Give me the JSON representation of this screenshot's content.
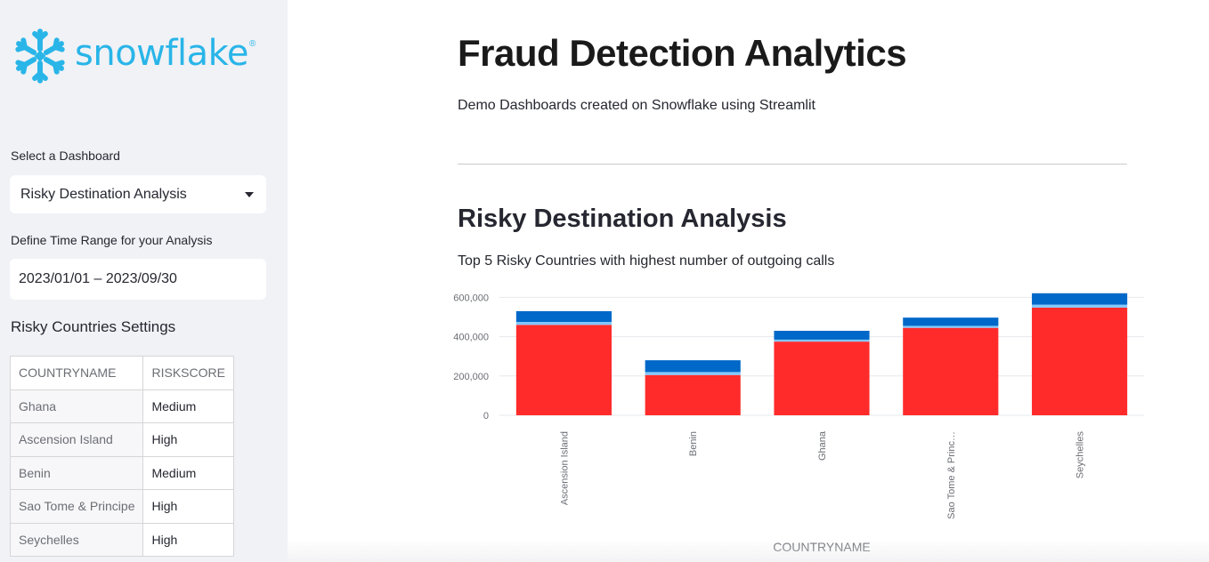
{
  "brand": {
    "logo_text": "snowflake",
    "reg_mark": "®",
    "logo_color": "#29b5e8"
  },
  "sidebar": {
    "select_label": "Select a Dashboard",
    "selected_dashboard": "Risky Destination Analysis",
    "time_label": "Define Time Range for your Analysis",
    "time_range": "2023/01/01 – 2023/09/30",
    "settings_heading": "Risky Countries Settings",
    "table": {
      "columns": [
        "COUNTRYNAME",
        "RISKSCORE"
      ],
      "rows": [
        [
          "Ghana",
          "Medium"
        ],
        [
          "Ascension Island",
          "High"
        ],
        [
          "Benin",
          "Medium"
        ],
        [
          "Sao Tome & Principe",
          "High"
        ],
        [
          "Seychelles",
          "High"
        ]
      ]
    }
  },
  "main": {
    "title": "Fraud Detection Analytics",
    "subtitle": "Demo Dashboards created on Snowflake using Streamlit",
    "section_title": "Risky Destination Analysis",
    "chart_caption": "Top 5 Risky Countries with highest number of outgoing calls"
  },
  "chart_data": {
    "type": "bar",
    "stacked": true,
    "categories": [
      "Ascension Island",
      "Benin",
      "Ghana",
      "Sao Tome & Princ…",
      "Seychelles"
    ],
    "series": [
      {
        "values": [
          460000,
          205000,
          375000,
          445000,
          548000
        ],
        "color": "#ff2b2b"
      },
      {
        "values": [
          15000,
          15000,
          10000,
          10000,
          15000
        ],
        "color": "#83c9ff"
      },
      {
        "values": [
          55000,
          60000,
          45000,
          42000,
          58000
        ],
        "color": "#0068c9"
      }
    ],
    "ylim": [
      0,
      620000
    ],
    "yticks": [
      0,
      200000,
      400000,
      600000
    ],
    "ytick_labels": [
      "0",
      "200,000",
      "400,000",
      "600,000"
    ],
    "xlabel": "COUNTRYNAME",
    "ylabel": "",
    "grid": true
  }
}
